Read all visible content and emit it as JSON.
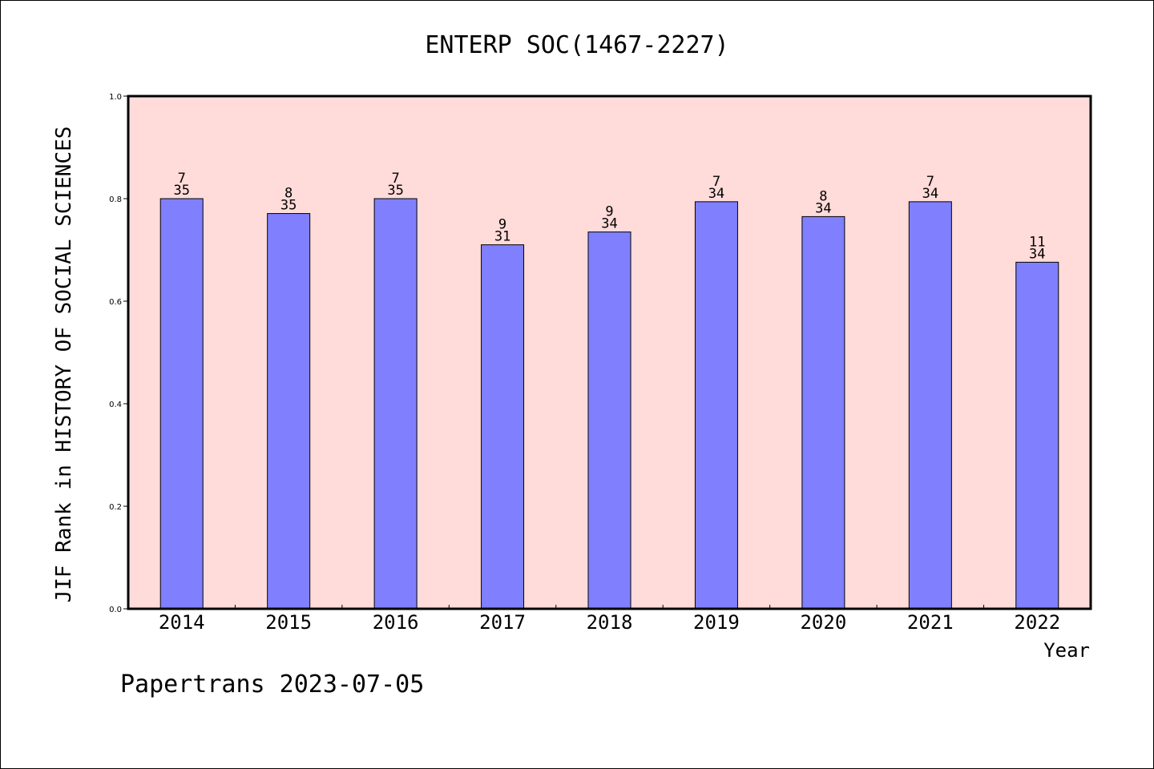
{
  "chart_data": {
    "type": "bar",
    "title": "ENTERP SOC(1467-2227)",
    "xlabel": "Year",
    "ylabel": "JIF Rank in HISTORY OF SOCIAL SCIENCES",
    "categories": [
      "2014",
      "2015",
      "2016",
      "2017",
      "2018",
      "2019",
      "2020",
      "2021",
      "2022"
    ],
    "values": [
      0.8,
      0.771,
      0.8,
      0.71,
      0.735,
      0.794,
      0.765,
      0.794,
      0.676
    ],
    "rank": [
      "7",
      "8",
      "7",
      "9",
      "9",
      "7",
      "8",
      "7",
      "11"
    ],
    "total": [
      "35",
      "35",
      "35",
      "31",
      "34",
      "34",
      "34",
      "34",
      "34"
    ],
    "ylim": [
      0,
      1
    ],
    "yticks": [
      "0.0",
      "0.2",
      "0.4",
      "0.6",
      "0.8",
      "1.0"
    ],
    "grid": false,
    "legend": "none",
    "colors": {
      "bar": "#8080ff",
      "plot_background": "#ffdbd9",
      "axis": "#000000"
    }
  },
  "footer": "Papertrans 2023-07-05"
}
